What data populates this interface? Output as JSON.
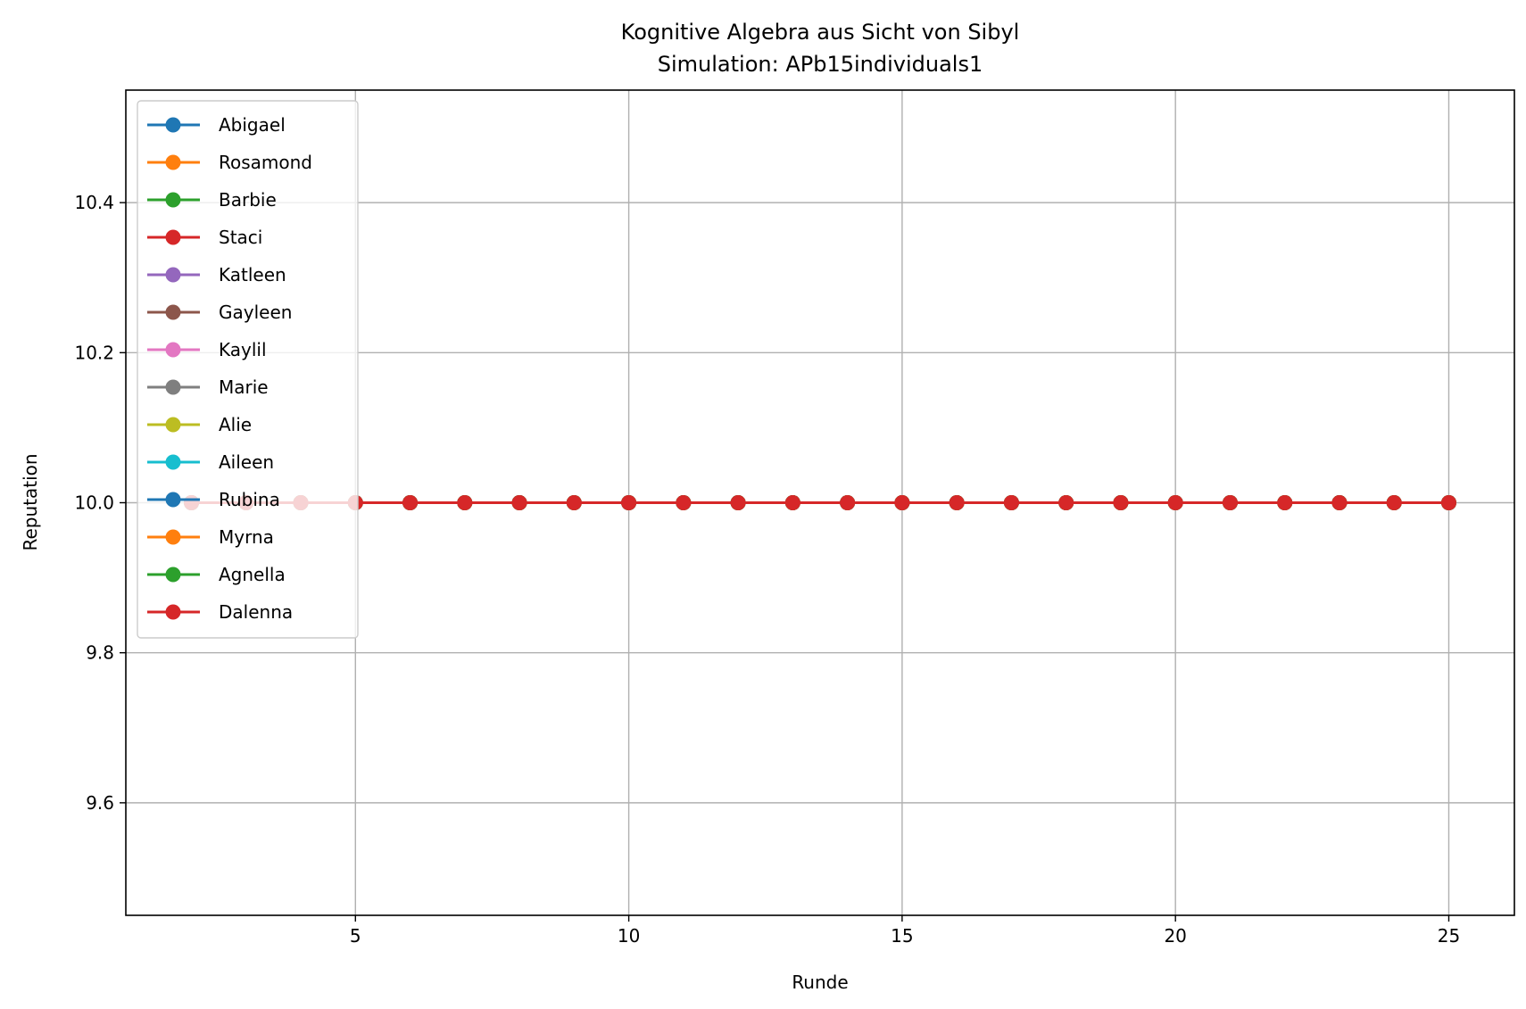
{
  "chart_data": {
    "type": "line",
    "title": "Kognitive Algebra aus Sicht von Sibyl",
    "subtitle": "Simulation: APb15individuals1",
    "xlabel": "Runde",
    "ylabel": "Reputation",
    "xlim": [
      0.8,
      26.2
    ],
    "ylim": [
      9.45,
      10.55
    ],
    "xticks": [
      5,
      10,
      15,
      20,
      25
    ],
    "xtick_labels": [
      "5",
      "10",
      "15",
      "20",
      "25"
    ],
    "yticks": [
      9.6,
      9.8,
      10.0,
      10.2,
      10.4
    ],
    "ytick_labels": [
      "9.6",
      "9.8",
      "10.0",
      "10.2",
      "10.4"
    ],
    "grid": true,
    "legend_position": "top-left",
    "series": [
      {
        "name": "Abigael",
        "color": "#1f77b4",
        "x": [
          2,
          3,
          4,
          5,
          6,
          7,
          8,
          9,
          10,
          11,
          12,
          13,
          14,
          15,
          16,
          17,
          18,
          19,
          20,
          21,
          22,
          23,
          24,
          25
        ],
        "y": [
          10,
          10,
          10,
          10,
          10,
          10,
          10,
          10,
          10,
          10,
          10,
          10,
          10,
          10,
          10,
          10,
          10,
          10,
          10,
          10,
          10,
          10,
          10,
          10
        ]
      },
      {
        "name": "Rosamond",
        "color": "#ff7f0e",
        "x": [
          2,
          3,
          4,
          5,
          6,
          7,
          8,
          9,
          10,
          11,
          12,
          13,
          14,
          15,
          16,
          17,
          18,
          19,
          20,
          21,
          22,
          23,
          24,
          25
        ],
        "y": [
          10,
          10,
          10,
          10,
          10,
          10,
          10,
          10,
          10,
          10,
          10,
          10,
          10,
          10,
          10,
          10,
          10,
          10,
          10,
          10,
          10,
          10,
          10,
          10
        ]
      },
      {
        "name": "Barbie",
        "color": "#2ca02c",
        "x": [
          2,
          3,
          4,
          5,
          6,
          7,
          8,
          9,
          10,
          11,
          12,
          13,
          14,
          15,
          16,
          17,
          18,
          19,
          20,
          21,
          22,
          23,
          24,
          25
        ],
        "y": [
          10,
          10,
          10,
          10,
          10,
          10,
          10,
          10,
          10,
          10,
          10,
          10,
          10,
          10,
          10,
          10,
          10,
          10,
          10,
          10,
          10,
          10,
          10,
          10
        ]
      },
      {
        "name": "Staci",
        "color": "#d62728",
        "x": [
          2,
          3,
          4,
          5,
          6,
          7,
          8,
          9,
          10,
          11,
          12,
          13,
          14,
          15,
          16,
          17,
          18,
          19,
          20,
          21,
          22,
          23,
          24,
          25
        ],
        "y": [
          10,
          10,
          10,
          10,
          10,
          10,
          10,
          10,
          10,
          10,
          10,
          10,
          10,
          10,
          10,
          10,
          10,
          10,
          10,
          10,
          10,
          10,
          10,
          10
        ]
      },
      {
        "name": "Katleen",
        "color": "#9467bd",
        "x": [
          2,
          3,
          4,
          5,
          6,
          7,
          8,
          9,
          10,
          11,
          12,
          13,
          14,
          15,
          16,
          17,
          18,
          19,
          20,
          21,
          22,
          23,
          24,
          25
        ],
        "y": [
          10,
          10,
          10,
          10,
          10,
          10,
          10,
          10,
          10,
          10,
          10,
          10,
          10,
          10,
          10,
          10,
          10,
          10,
          10,
          10,
          10,
          10,
          10,
          10
        ]
      },
      {
        "name": "Gayleen",
        "color": "#8c564b",
        "x": [
          2,
          3,
          4,
          5,
          6,
          7,
          8,
          9,
          10,
          11,
          12,
          13,
          14,
          15,
          16,
          17,
          18,
          19,
          20,
          21,
          22,
          23,
          24,
          25
        ],
        "y": [
          10,
          10,
          10,
          10,
          10,
          10,
          10,
          10,
          10,
          10,
          10,
          10,
          10,
          10,
          10,
          10,
          10,
          10,
          10,
          10,
          10,
          10,
          10,
          10
        ]
      },
      {
        "name": "Kaylil",
        "color": "#e377c2",
        "x": [
          2,
          3,
          4,
          5,
          6,
          7,
          8,
          9,
          10,
          11,
          12,
          13,
          14,
          15,
          16,
          17,
          18,
          19,
          20,
          21,
          22,
          23,
          24,
          25
        ],
        "y": [
          10,
          10,
          10,
          10,
          10,
          10,
          10,
          10,
          10,
          10,
          10,
          10,
          10,
          10,
          10,
          10,
          10,
          10,
          10,
          10,
          10,
          10,
          10,
          10
        ]
      },
      {
        "name": "Marie",
        "color": "#7f7f7f",
        "x": [
          2,
          3,
          4,
          5,
          6,
          7,
          8,
          9,
          10,
          11,
          12,
          13,
          14,
          15,
          16,
          17,
          18,
          19,
          20,
          21,
          22,
          23,
          24,
          25
        ],
        "y": [
          10,
          10,
          10,
          10,
          10,
          10,
          10,
          10,
          10,
          10,
          10,
          10,
          10,
          10,
          10,
          10,
          10,
          10,
          10,
          10,
          10,
          10,
          10,
          10
        ]
      },
      {
        "name": "Alie",
        "color": "#bcbd22",
        "x": [
          2,
          3,
          4,
          5,
          6,
          7,
          8,
          9,
          10,
          11,
          12,
          13,
          14,
          15,
          16,
          17,
          18,
          19,
          20,
          21,
          22,
          23,
          24,
          25
        ],
        "y": [
          10,
          10,
          10,
          10,
          10,
          10,
          10,
          10,
          10,
          10,
          10,
          10,
          10,
          10,
          10,
          10,
          10,
          10,
          10,
          10,
          10,
          10,
          10,
          10
        ]
      },
      {
        "name": "Aileen",
        "color": "#17becf",
        "x": [
          2,
          3,
          4,
          5,
          6,
          7,
          8,
          9,
          10,
          11,
          12,
          13,
          14,
          15,
          16,
          17,
          18,
          19,
          20,
          21,
          22,
          23,
          24,
          25
        ],
        "y": [
          10,
          10,
          10,
          10,
          10,
          10,
          10,
          10,
          10,
          10,
          10,
          10,
          10,
          10,
          10,
          10,
          10,
          10,
          10,
          10,
          10,
          10,
          10,
          10
        ]
      },
      {
        "name": "Rubina",
        "color": "#1f77b4",
        "x": [
          2,
          3,
          4,
          5,
          6,
          7,
          8,
          9,
          10,
          11,
          12,
          13,
          14,
          15,
          16,
          17,
          18,
          19,
          20,
          21,
          22,
          23,
          24,
          25
        ],
        "y": [
          10,
          10,
          10,
          10,
          10,
          10,
          10,
          10,
          10,
          10,
          10,
          10,
          10,
          10,
          10,
          10,
          10,
          10,
          10,
          10,
          10,
          10,
          10,
          10
        ]
      },
      {
        "name": "Myrna",
        "color": "#ff7f0e",
        "x": [
          2,
          3,
          4,
          5,
          6,
          7,
          8,
          9,
          10,
          11,
          12,
          13,
          14,
          15,
          16,
          17,
          18,
          19,
          20,
          21,
          22,
          23,
          24,
          25
        ],
        "y": [
          10,
          10,
          10,
          10,
          10,
          10,
          10,
          10,
          10,
          10,
          10,
          10,
          10,
          10,
          10,
          10,
          10,
          10,
          10,
          10,
          10,
          10,
          10,
          10
        ]
      },
      {
        "name": "Agnella",
        "color": "#2ca02c",
        "x": [
          2,
          3,
          4,
          5,
          6,
          7,
          8,
          9,
          10,
          11,
          12,
          13,
          14,
          15,
          16,
          17,
          18,
          19,
          20,
          21,
          22,
          23,
          24,
          25
        ],
        "y": [
          10,
          10,
          10,
          10,
          10,
          10,
          10,
          10,
          10,
          10,
          10,
          10,
          10,
          10,
          10,
          10,
          10,
          10,
          10,
          10,
          10,
          10,
          10,
          10
        ]
      },
      {
        "name": "Dalenna",
        "color": "#d62728",
        "x": [
          2,
          3,
          4,
          5,
          6,
          7,
          8,
          9,
          10,
          11,
          12,
          13,
          14,
          15,
          16,
          17,
          18,
          19,
          20,
          21,
          22,
          23,
          24,
          25
        ],
        "y": [
          10,
          10,
          10,
          10,
          10,
          10,
          10,
          10,
          10,
          10,
          10,
          10,
          10,
          10,
          10,
          10,
          10,
          10,
          10,
          10,
          10,
          10,
          10,
          10
        ]
      }
    ]
  }
}
